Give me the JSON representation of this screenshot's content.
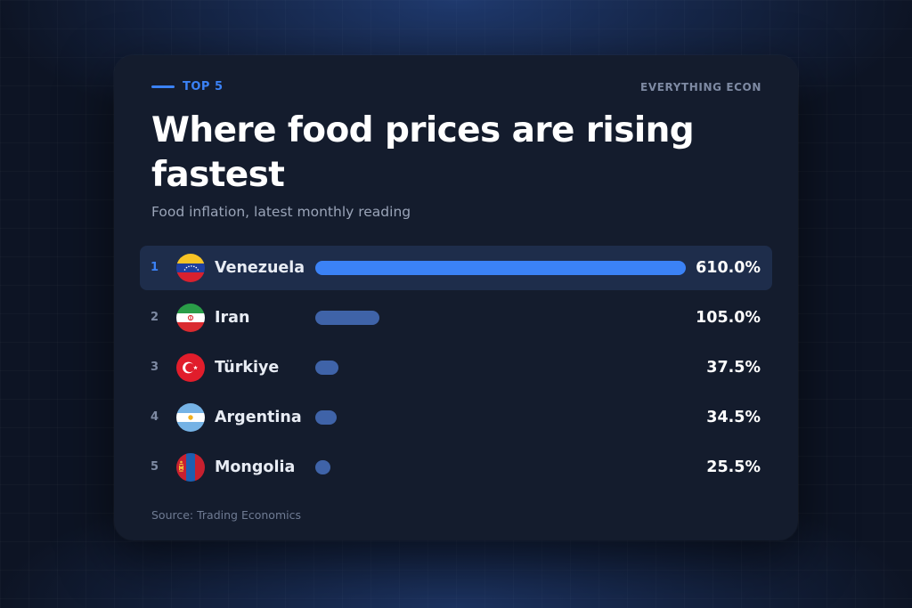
{
  "header": {
    "kicker": "TOP 5",
    "brand": "EVERYTHING ECON"
  },
  "colors": {
    "accent": "#3b82f6",
    "bar": "#3f63a8",
    "card": "#141c2d",
    "background": "#0d1424"
  },
  "footer": {
    "source": "Source: Trading Economics"
  },
  "chart_data": {
    "type": "bar",
    "orientation": "horizontal",
    "title": "Where food prices are rising fastest",
    "subtitle": "Food inflation, latest monthly reading",
    "categories": [
      "Venezuela",
      "Iran",
      "Türkiye",
      "Argentina",
      "Mongolia"
    ],
    "ranks": [
      "1",
      "2",
      "3",
      "4",
      "5"
    ],
    "values": [
      610.0,
      105.0,
      37.5,
      34.5,
      25.5
    ],
    "value_labels": [
      "610.0%",
      "105.0%",
      "37.5%",
      "34.5%",
      "25.5%"
    ],
    "flag_icons": [
      "flag-venezuela-icon",
      "flag-iran-icon",
      "flag-turkiye-icon",
      "flag-argentina-icon",
      "flag-mongolia-icon"
    ],
    "highlighted_index": 0,
    "xlim": [
      0,
      610
    ],
    "grid": false,
    "legend": "none"
  }
}
